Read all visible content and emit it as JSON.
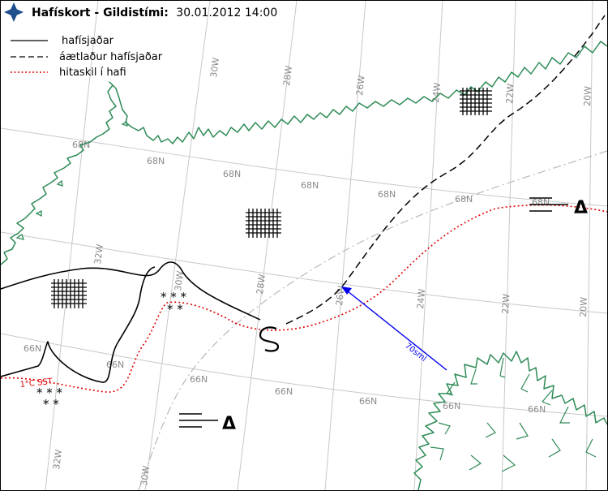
{
  "header": {
    "title_bold": "Hafískort - Gildistími:",
    "title_date": "30.01.2012 14:00"
  },
  "legend": {
    "items": [
      {
        "label": "hafísjaðar",
        "style": "solid"
      },
      {
        "label": "áætlaður hafísjaðar",
        "style": "dashed"
      },
      {
        "label": "hitaskil í hafi",
        "style": "dotted-red"
      }
    ]
  },
  "grid": {
    "lat_labels": [
      "68N",
      "68N",
      "68N",
      "68N",
      "68N",
      "66N",
      "66N",
      "66N",
      "66N",
      "66N",
      "66N"
    ],
    "lon_labels": [
      "30W",
      "28W",
      "26W",
      "24W",
      "22W",
      "20W",
      "32W",
      "30W",
      "28W",
      "26W",
      "24W",
      "22W",
      "20W",
      "32W",
      "30W"
    ]
  },
  "annotations": {
    "distance_label": "70sml",
    "sst_label": "1°C SST",
    "stars_a_row1": "* * *",
    "stars_a_row2": "* *",
    "stars_b_row1": "* * *",
    "stars_b_row2": "* *",
    "triangle_1": "Δ",
    "triangle_2": "Δ",
    "spiral": "S"
  },
  "colors": {
    "coast": "#2e8b57",
    "front": "#e00000",
    "arrow": "#0000ee",
    "grid": "#c8c8c8",
    "logo": "#1e4e8c"
  }
}
